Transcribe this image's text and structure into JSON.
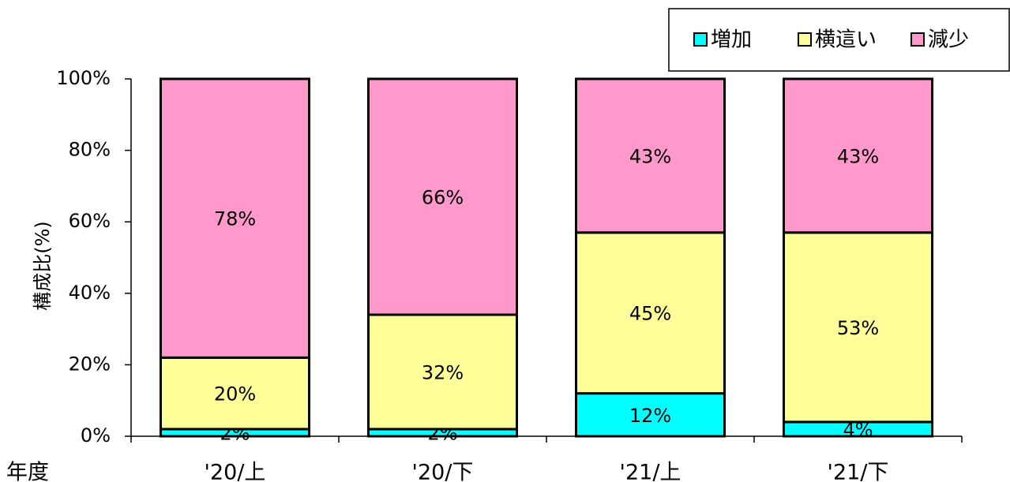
{
  "chart_data": {
    "type": "bar",
    "stacked": true,
    "y_label": "構成比(%)",
    "x_label": "年度",
    "categories": [
      "'20/上",
      "'20/下",
      "'21/上",
      "'21/下"
    ],
    "series": [
      {
        "name": "増加",
        "color": "#00ffff",
        "values": [
          2,
          2,
          12,
          4
        ],
        "value_labels": [
          "2%",
          "2%",
          "12%",
          "4%"
        ]
      },
      {
        "name": "横這い",
        "color": "#ffff99",
        "values": [
          20,
          32,
          45,
          53
        ],
        "value_labels": [
          "20%",
          "32%",
          "45%",
          "53%"
        ]
      },
      {
        "name": "減少",
        "color": "#ff99cc",
        "values": [
          78,
          66,
          43,
          43
        ],
        "value_labels": [
          "78%",
          "66%",
          "43%",
          "43%"
        ]
      }
    ],
    "ylim": [
      0,
      100
    ],
    "yticks": [
      {
        "value": 0,
        "label": "0%"
      },
      {
        "value": 20,
        "label": "20%"
      },
      {
        "value": 40,
        "label": "40%"
      },
      {
        "value": 60,
        "label": "60%"
      },
      {
        "value": 80,
        "label": "80%"
      },
      {
        "value": 100,
        "label": "100%"
      }
    ],
    "legend": "top-right"
  }
}
